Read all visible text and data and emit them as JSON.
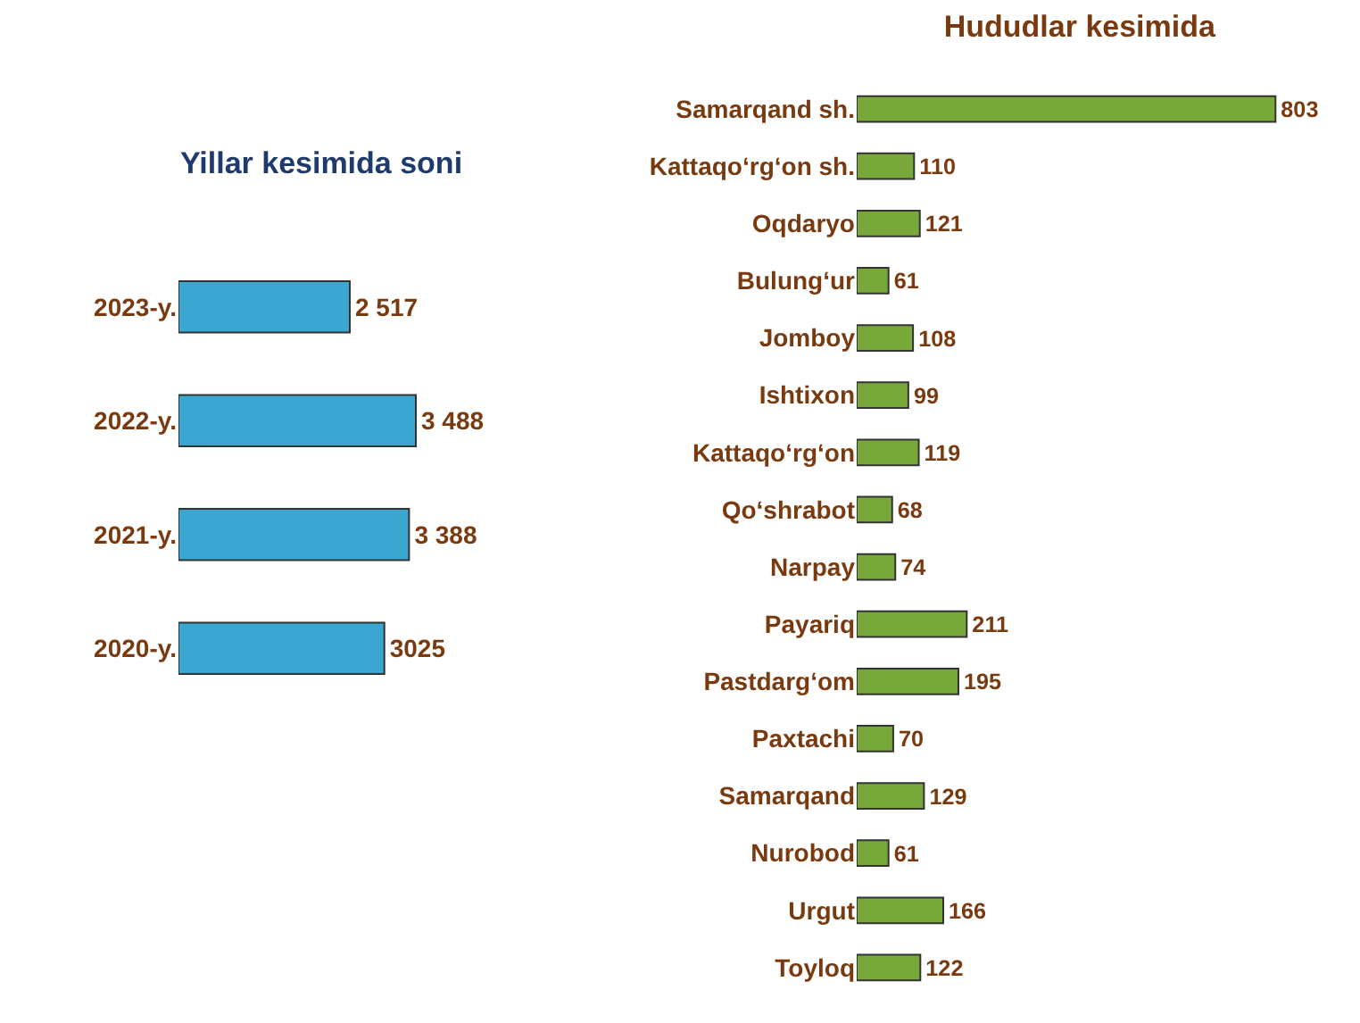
{
  "chart_data": [
    {
      "type": "bar",
      "title": "Yillar kesimida soni",
      "orientation": "horizontal",
      "color": "#3ba6cf",
      "categories": [
        "2023-y.",
        "2022-y.",
        "2021-y.",
        "2020-y."
      ],
      "values": [
        2517,
        3488,
        3388,
        3025
      ],
      "value_labels": [
        "2 517",
        "3 488",
        "3 388",
        "3025"
      ]
    },
    {
      "type": "bar",
      "title": "Hududlar kesimida",
      "orientation": "horizontal",
      "color": "#78a83a",
      "categories": [
        "Samarqand sh.",
        "Kattaqo‘rg‘on sh.",
        "Oqdaryo",
        "Bulung‘ur",
        "Jomboy",
        "Ishtixon",
        "Kattaqo‘rg‘on",
        "Qo‘shrabot",
        "Narpay",
        "Payariq",
        "Pastdarg‘om",
        "Paxtachi",
        "Samarqand",
        "Nurobod",
        "Urgut",
        "Toyloq"
      ],
      "values": [
        803,
        110,
        121,
        61,
        108,
        99,
        119,
        68,
        74,
        211,
        195,
        70,
        129,
        61,
        166,
        122
      ],
      "data_labels": true
    }
  ]
}
